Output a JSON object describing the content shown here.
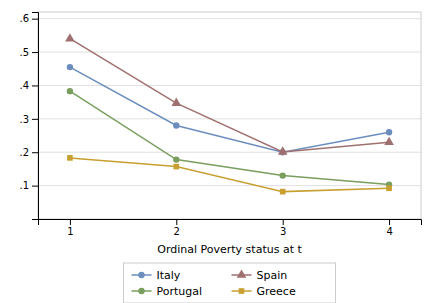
{
  "chart_data": {
    "type": "line",
    "xlabel": "Ordinal Poverty status at t",
    "x": [
      1,
      2,
      3,
      4
    ],
    "xlim": [
      0.7,
      4.3
    ],
    "xticks": [
      1,
      2,
      3,
      4
    ],
    "ylim": [
      0.0,
      0.62
    ],
    "yticks": [
      {
        "value": 0.1,
        "label": ".1"
      },
      {
        "value": 0.2,
        "label": ".2"
      },
      {
        "value": 0.3,
        "label": ".3"
      },
      {
        "value": 0.4,
        "label": ".4"
      },
      {
        "value": 0.5,
        "label": ".5"
      },
      {
        "value": 0.6,
        "label": ".6"
      }
    ],
    "grid": true,
    "legend": "bottom",
    "series": [
      {
        "name": "Italy",
        "color": "#6b8ebf",
        "marker": "circle",
        "values": [
          0.455,
          0.28,
          0.2,
          0.26
        ]
      },
      {
        "name": "Spain",
        "color": "#a07070",
        "marker": "triangle",
        "values": [
          0.54,
          0.347,
          0.201,
          0.23
        ]
      },
      {
        "name": "Portugal",
        "color": "#7a9e5e",
        "marker": "circle",
        "values": [
          0.383,
          0.178,
          0.13,
          0.103
        ]
      },
      {
        "name": "Greece",
        "color": "#c8a030",
        "marker": "square",
        "values": [
          0.183,
          0.157,
          0.082,
          0.092
        ]
      }
    ]
  }
}
